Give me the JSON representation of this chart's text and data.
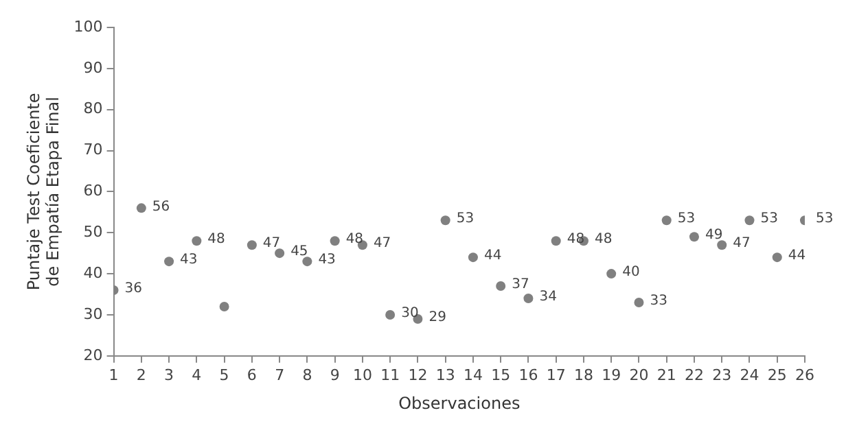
{
  "chart_data": {
    "type": "scatter",
    "xlabel": "Observaciones",
    "ylabel": "Puntaje Test Coeficiente de Empatía Etapa Final",
    "x": [
      1,
      2,
      3,
      4,
      5,
      6,
      7,
      8,
      9,
      10,
      11,
      12,
      13,
      14,
      15,
      16,
      17,
      18,
      19,
      20,
      21,
      22,
      23,
      24,
      25,
      26
    ],
    "series": [
      {
        "color": "#808080",
        "values": [
          36,
          56,
          43,
          48,
          32,
          47,
          45,
          43,
          48,
          47,
          30,
          29,
          53,
          44,
          37,
          34,
          48,
          48,
          40,
          33,
          53,
          49,
          47,
          53,
          44,
          53
        ],
        "value_labels": [
          "36",
          "56",
          "43",
          "48",
          null,
          "47",
          "45",
          "43",
          "48",
          "47",
          "30",
          "29",
          "53",
          "44",
          "37",
          "34",
          "48",
          "48",
          "40",
          "33",
          "53",
          "49",
          "47",
          "53",
          "44",
          "53"
        ]
      }
    ],
    "xlim": [
      1,
      26
    ],
    "xticks": [
      1,
      2,
      3,
      4,
      5,
      6,
      7,
      8,
      9,
      10,
      11,
      12,
      13,
      14,
      15,
      16,
      17,
      18,
      19,
      20,
      21,
      22,
      23,
      24,
      25,
      26
    ],
    "ylim": [
      20,
      100
    ],
    "yticks": [
      20,
      30,
      40,
      50,
      60,
      70,
      80,
      90,
      100
    ],
    "grid": false,
    "legend": false,
    "marker": "circle"
  }
}
